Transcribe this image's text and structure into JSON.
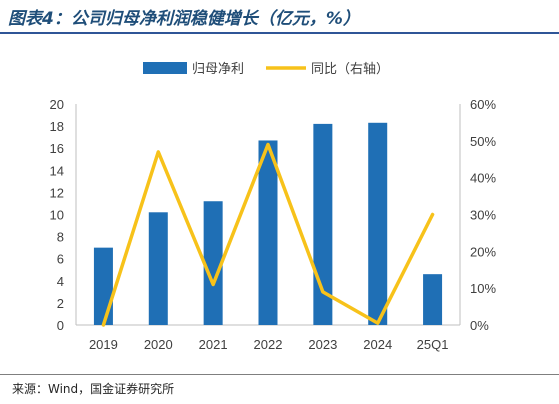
{
  "title": "图表4：公司归母净利润稳健增长（亿元，%）",
  "source": "来源：Wind，国金证券研究所",
  "colors": {
    "bar": "#1f6fb5",
    "line": "#f7c21a",
    "title": "#1f4e79",
    "rule": "#2f5597"
  },
  "chart_data": {
    "type": "bar",
    "categories": [
      "2019",
      "2020",
      "2021",
      "2022",
      "2023",
      "2024",
      "25Q1"
    ],
    "series": [
      {
        "name": "归母净利",
        "type": "bar",
        "axis": "left",
        "values": [
          7.0,
          10.2,
          11.2,
          16.7,
          18.2,
          18.3,
          4.6
        ]
      },
      {
        "name": "同比（右轴）",
        "type": "line",
        "axis": "right",
        "values": [
          0,
          47,
          11,
          49,
          9,
          0.5,
          30
        ]
      }
    ],
    "y_left": {
      "min": 0,
      "max": 20,
      "step": 2,
      "ticks": [
        "0",
        "2",
        "4",
        "6",
        "8",
        "10",
        "12",
        "14",
        "16",
        "18",
        "20"
      ]
    },
    "y_right": {
      "min": 0,
      "max": 60,
      "step": 10,
      "ticks": [
        "0%",
        "10%",
        "20%",
        "30%",
        "40%",
        "50%",
        "60%"
      ]
    },
    "legend_position": "top-center",
    "grid": false
  }
}
